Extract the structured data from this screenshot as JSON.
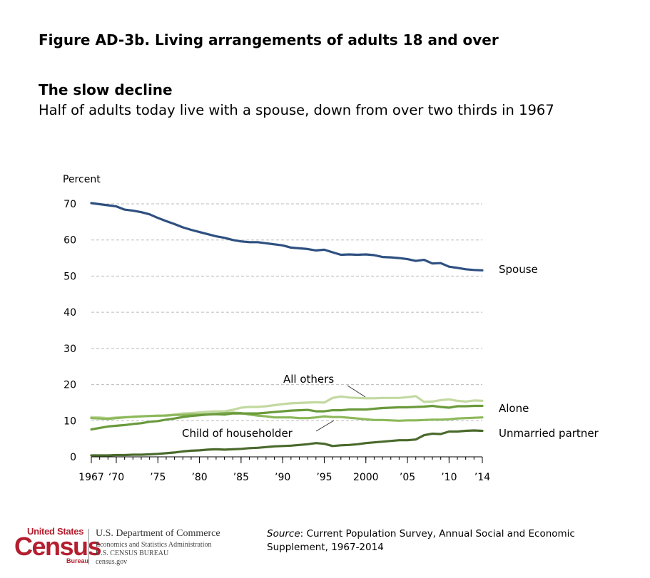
{
  "figure_title": "Figure AD-3b. Living arrangements of adults 18 and over",
  "heading": "The slow decline",
  "subtitle": "Half of adults today live with a spouse, down from over two thirds in 1967",
  "source": {
    "label": "Source",
    "text": ": Current Population Survey, Annual Social and Economic Supplement, 1967-2014"
  },
  "logo": {
    "word_top": "United States",
    "word_main": "Census",
    "word_bottom": "Bureau",
    "department": "U.S. Department of Commerce",
    "line1": "Economics and Statistics Administration",
    "line2": "U.S. CENSUS BUREAU",
    "line3": "census.gov",
    "color": "#b41e2e"
  },
  "chart_data": {
    "type": "line",
    "ylabel": "Percent",
    "ylim": [
      0,
      70
    ],
    "yticks": [
      0,
      10,
      20,
      30,
      40,
      50,
      60,
      70
    ],
    "xlim": [
      1967,
      2014
    ],
    "xticks": [
      {
        "value": 1967,
        "label": "1967"
      },
      {
        "value": 1970,
        "label": "‘70"
      },
      {
        "value": 1975,
        "label": "’75"
      },
      {
        "value": 1980,
        "label": "’80"
      },
      {
        "value": 1985,
        "label": "’85"
      },
      {
        "value": 1990,
        "label": "’90"
      },
      {
        "value": 1995,
        "label": "’95"
      },
      {
        "value": 2000,
        "label": "2000"
      },
      {
        "value": 2005,
        "label": "’05"
      },
      {
        "value": 2010,
        "label": "’10"
      },
      {
        "value": 2014,
        "label": "’14"
      }
    ],
    "grid": true,
    "x": [
      1967,
      1968,
      1969,
      1970,
      1971,
      1972,
      1973,
      1974,
      1975,
      1976,
      1977,
      1978,
      1979,
      1980,
      1981,
      1982,
      1983,
      1984,
      1985,
      1986,
      1987,
      1988,
      1989,
      1990,
      1991,
      1992,
      1993,
      1994,
      1995,
      1996,
      1997,
      1998,
      1999,
      2000,
      2001,
      2002,
      2003,
      2004,
      2005,
      2006,
      2007,
      2008,
      2009,
      2010,
      2011,
      2012,
      2013,
      2014
    ],
    "series": [
      {
        "name": "Spouse",
        "color": "#2e5080",
        "values": [
          70.2,
          69.9,
          69.6,
          69.3,
          68.4,
          68.1,
          67.7,
          67.1,
          66.1,
          65.2,
          64.4,
          63.5,
          62.8,
          62.2,
          61.6,
          61.0,
          60.6,
          60.0,
          59.6,
          59.4,
          59.4,
          59.1,
          58.8,
          58.5,
          57.9,
          57.7,
          57.5,
          57.1,
          57.3,
          56.6,
          55.9,
          56.0,
          55.9,
          56.0,
          55.8,
          55.3,
          55.2,
          55.0,
          54.7,
          54.2,
          54.5,
          53.5,
          53.6,
          52.6,
          52.3,
          51.9,
          51.7,
          51.6
        ]
      },
      {
        "name": "All others",
        "color": "#c2d9a0",
        "values": [
          11.0,
          10.9,
          10.7,
          10.9,
          11.0,
          11.0,
          11.2,
          11.3,
          11.3,
          11.5,
          11.7,
          12.0,
          12.1,
          12.3,
          12.5,
          12.6,
          12.6,
          13.0,
          13.6,
          13.8,
          13.8,
          14.0,
          14.3,
          14.6,
          14.8,
          14.9,
          15.0,
          15.1,
          15.0,
          16.3,
          16.7,
          16.4,
          16.3,
          16.2,
          16.2,
          16.3,
          16.3,
          16.3,
          16.5,
          16.8,
          15.2,
          15.3,
          15.7,
          15.9,
          15.5,
          15.3,
          15.6,
          15.5
        ]
      },
      {
        "name": "Alone",
        "color": "#6a9a3c",
        "values": [
          7.6,
          8.0,
          8.4,
          8.6,
          8.8,
          9.1,
          9.3,
          9.7,
          9.9,
          10.3,
          10.6,
          11.0,
          11.3,
          11.5,
          11.7,
          11.8,
          11.7,
          12.0,
          12.0,
          12.0,
          12.0,
          12.2,
          12.4,
          12.6,
          12.8,
          12.9,
          13.0,
          12.6,
          12.6,
          12.9,
          12.9,
          13.1,
          13.1,
          13.1,
          13.3,
          13.5,
          13.6,
          13.7,
          13.7,
          13.8,
          13.9,
          14.1,
          13.8,
          13.6,
          14.0,
          14.0,
          14.1,
          14.1
        ]
      },
      {
        "name": "Child of householder",
        "color": "#8cb85a",
        "values": [
          10.7,
          10.6,
          10.5,
          10.7,
          10.9,
          11.1,
          11.2,
          11.3,
          11.4,
          11.4,
          11.6,
          11.6,
          11.7,
          11.7,
          11.8,
          11.9,
          12.1,
          12.2,
          12.1,
          11.7,
          11.4,
          11.2,
          10.9,
          10.9,
          10.9,
          10.7,
          10.7,
          10.9,
          11.2,
          11.0,
          11.0,
          10.8,
          10.6,
          10.4,
          10.2,
          10.2,
          10.1,
          10.0,
          10.1,
          10.1,
          10.2,
          10.3,
          10.3,
          10.4,
          10.6,
          10.7,
          10.8,
          10.9
        ]
      },
      {
        "name": "Unmarried partner",
        "color": "#4a6a2c",
        "values": [
          0.4,
          0.4,
          0.4,
          0.5,
          0.5,
          0.6,
          0.6,
          0.7,
          0.8,
          1.0,
          1.2,
          1.5,
          1.7,
          1.8,
          2.0,
          2.1,
          2.0,
          2.1,
          2.2,
          2.4,
          2.5,
          2.7,
          2.9,
          3.0,
          3.1,
          3.3,
          3.5,
          3.8,
          3.6,
          3.0,
          3.2,
          3.3,
          3.5,
          3.8,
          4.0,
          4.2,
          4.4,
          4.6,
          4.6,
          4.8,
          6.0,
          6.4,
          6.3,
          7.0,
          7.0,
          7.2,
          7.3,
          7.2
        ]
      }
    ],
    "annotations": [
      {
        "text": "Spouse"
      },
      {
        "text": "All others"
      },
      {
        "text": "Alone"
      },
      {
        "text": "Child of householder"
      },
      {
        "text": "Unmarried partner"
      }
    ]
  }
}
